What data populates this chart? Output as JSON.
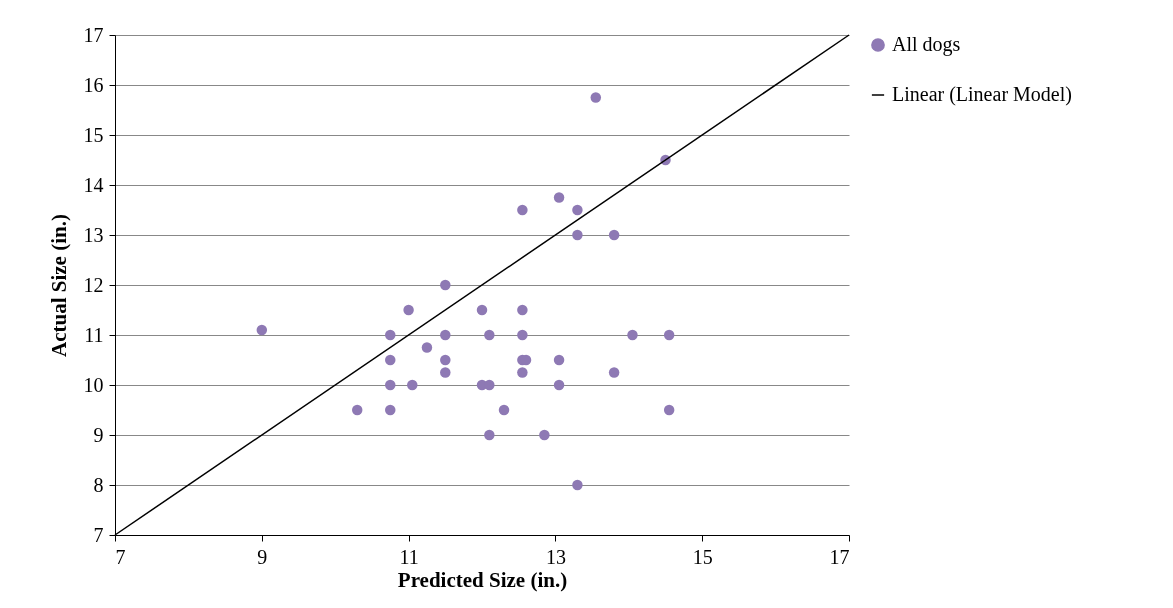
{
  "chart_data": {
    "type": "scatter",
    "xlabel": "Predicted Size (in.)",
    "ylabel": "Actual Size (in.)",
    "xlim": [
      7,
      17
    ],
    "xticks": [
      7,
      9,
      11,
      13,
      15,
      17
    ],
    "ylim": [
      7,
      17
    ],
    "yticks": [
      7,
      8,
      9,
      10,
      11,
      12,
      13,
      14,
      15,
      16,
      17
    ],
    "grid": "y",
    "legend": "right",
    "series": [
      {
        "name": "All dogs",
        "marker": "circle",
        "color": "#8e79b4",
        "x": [
          9.0,
          10.3,
          10.75,
          10.75,
          10.75,
          10.75,
          11.0,
          11.05,
          11.25,
          11.5,
          11.5,
          11.5,
          11.5,
          12.0,
          12.0,
          12.1,
          12.1,
          12.1,
          12.3,
          12.55,
          12.55,
          12.55,
          12.55,
          12.55,
          12.6,
          12.85,
          13.05,
          13.05,
          13.05,
          13.3,
          13.3,
          13.3,
          13.55,
          13.8,
          13.8,
          14.05,
          14.5,
          14.55,
          14.55
        ],
        "values": [
          11.1,
          9.5,
          11,
          10.5,
          10,
          9.5,
          11.5,
          10,
          10.75,
          12,
          11,
          10.5,
          10.25,
          11.5,
          10,
          11,
          10,
          9,
          9.5,
          13.5,
          11.5,
          11,
          10.5,
          10.25,
          10.5,
          9,
          13.75,
          10.5,
          10,
          13.5,
          13,
          8,
          15.75,
          13,
          10.25,
          11,
          14.5,
          11,
          9.5
        ]
      },
      {
        "name": "Linear (Linear Model)",
        "type": "line",
        "color": "#000000",
        "line_style": "solid",
        "x": [
          7,
          17
        ],
        "values": [
          7,
          17
        ]
      }
    ]
  }
}
